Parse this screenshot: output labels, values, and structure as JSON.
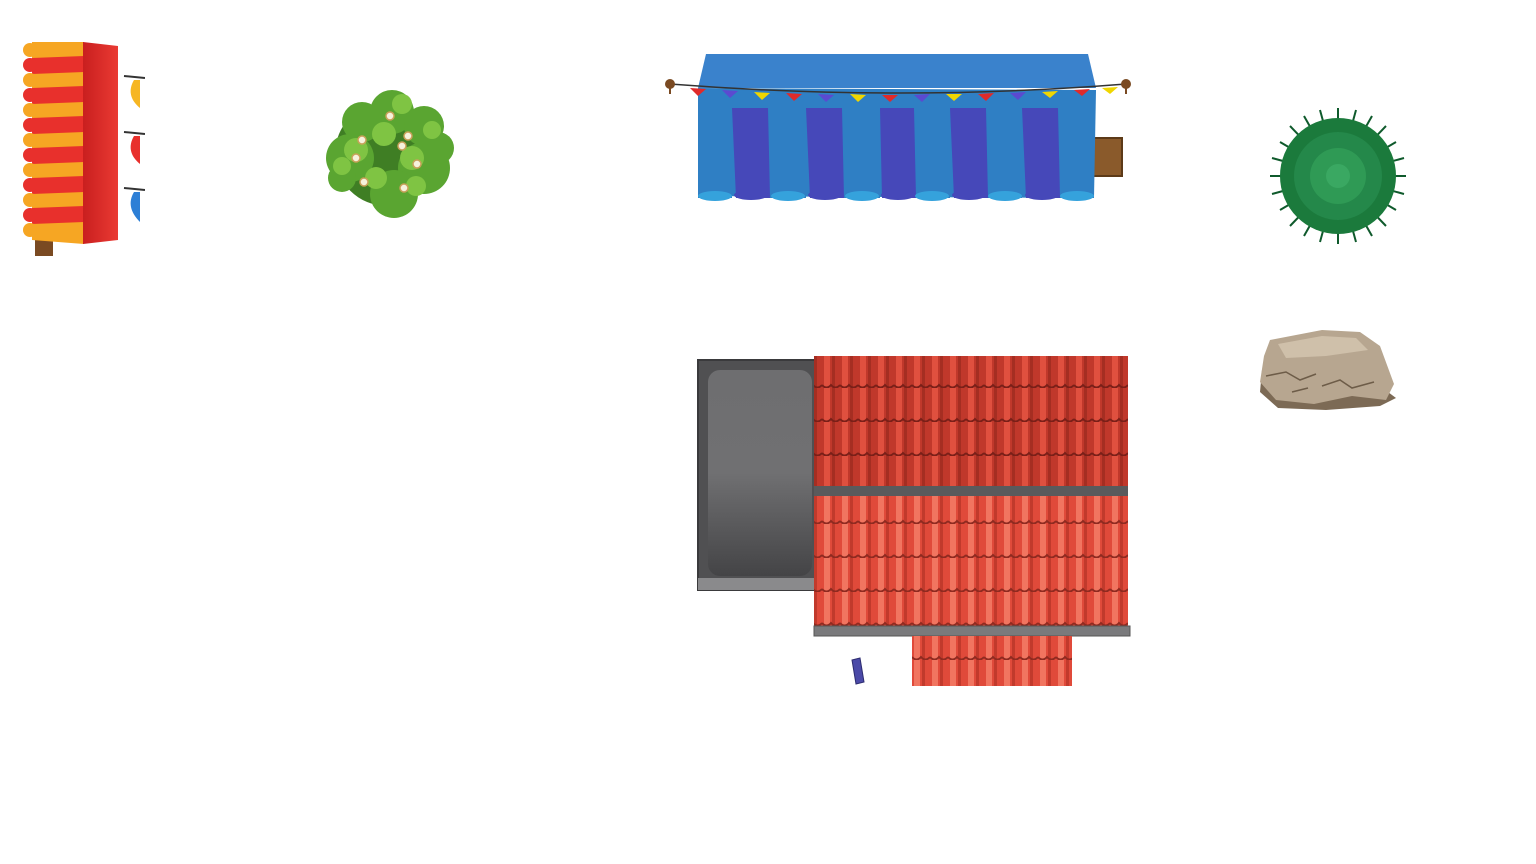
{
  "scene": {
    "background": "#ffffff",
    "objects": [
      {
        "name": "red-yellow-stall",
        "kind": "market-stall",
        "colors": [
          "#e8302c",
          "#f6a623"
        ]
      },
      {
        "name": "flowering-bush",
        "kind": "bush",
        "colors": [
          "#4f9a2e",
          "#78bd3e"
        ]
      },
      {
        "name": "blue-market-tent",
        "kind": "tent",
        "colors": [
          "#2f7fc4",
          "#4446b8"
        ]
      },
      {
        "name": "spiky-shrub",
        "kind": "shrub",
        "colors": [
          "#16703a",
          "#2f9a55"
        ]
      },
      {
        "name": "boulder",
        "kind": "rock",
        "colors": [
          "#b7a690",
          "#7c6a55"
        ]
      },
      {
        "name": "tiled-roof-house",
        "kind": "house",
        "colors": [
          "#e04a3a",
          "#6e6e70"
        ]
      },
      {
        "name": "purple-post",
        "kind": "post",
        "colors": [
          "#4b4aa8"
        ]
      }
    ]
  }
}
